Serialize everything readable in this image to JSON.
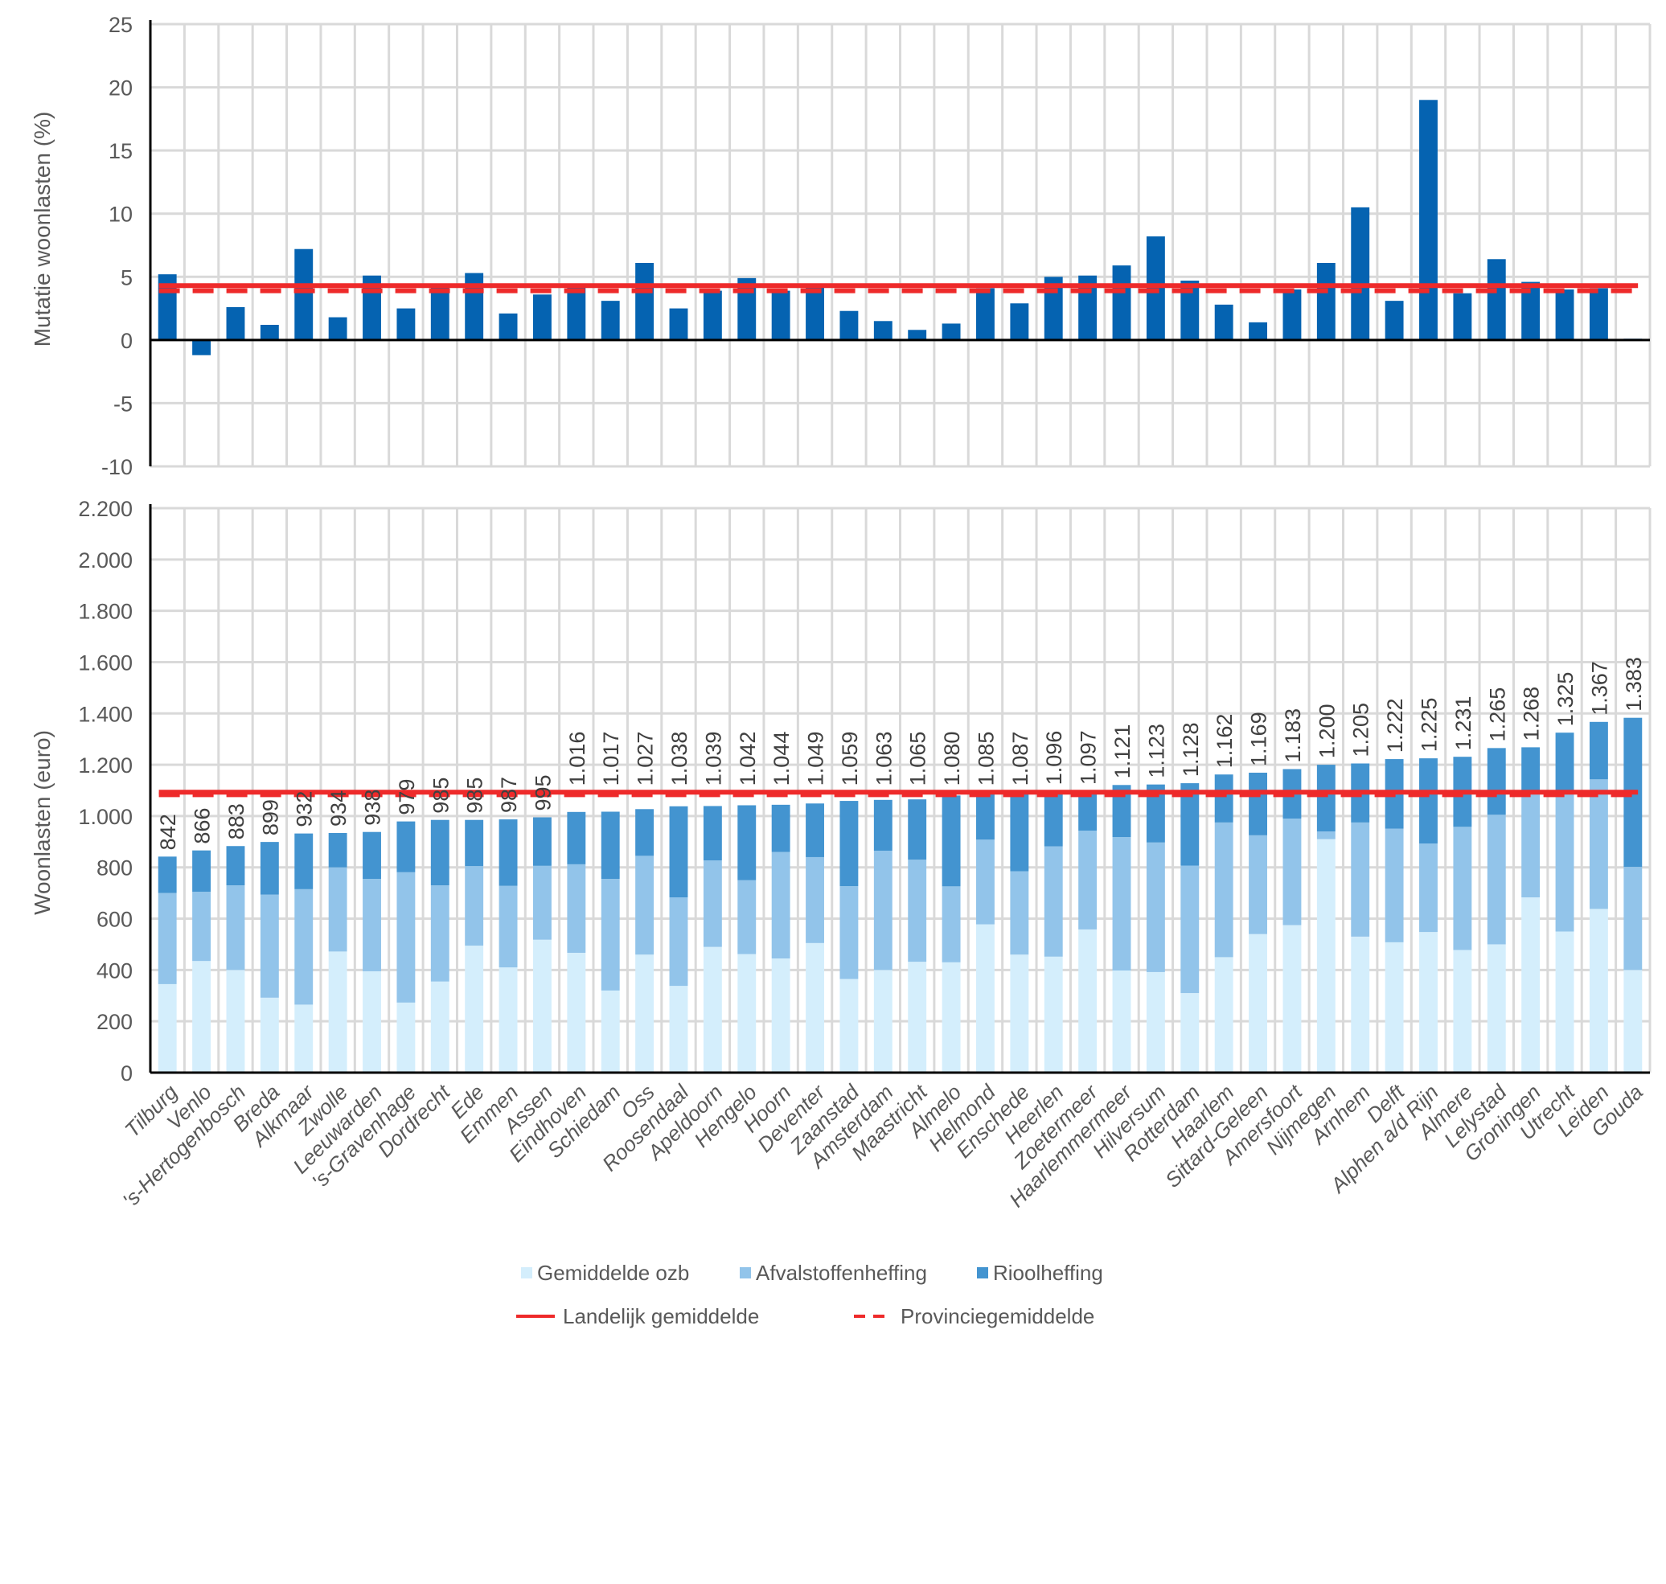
{
  "chart_data": [
    {
      "type": "bar",
      "title": "",
      "ylabel": "Mutatie woonlasten  (%)",
      "xlabel": "",
      "ylim": [
        -10,
        25
      ],
      "yticks": [
        25,
        20,
        15,
        10,
        5,
        0,
        -5,
        -10
      ],
      "grid": true,
      "categories": [
        "Tilburg",
        "Venlo",
        "'s-Hertogenbosch",
        "Breda",
        "Alkmaar",
        "Zwolle",
        "Leeuwarden",
        "'s-Gravenhage",
        "Dordrecht",
        "Ede",
        "Emmen",
        "Assen",
        "Eindhoven",
        "Schiedam",
        "Oss",
        "Roosendaal",
        "Apeldoorn",
        "Hengelo",
        "Hoorn",
        "Deventer",
        "Zaanstad",
        "Amsterdam",
        "Maastricht",
        "Almelo",
        "Helmond",
        "Enschede",
        "Heerlen",
        "Zoetermeer",
        "Haarlemmermeer",
        "Hilversum",
        "Rotterdam",
        "Haarlem",
        "Sittard-Geleen",
        "Amersfoort",
        "Nijmegen",
        "Arnhem",
        "Delft",
        "Alphen a/d Rijn",
        "Almere",
        "Lelystad",
        "Groningen",
        "Utrecht",
        "Leiden",
        "Gouda"
      ],
      "series": [
        {
          "name": "Mutatie woonlasten",
          "color": "#0563b1",
          "values": [
            5.2,
            -1.2,
            2.6,
            1.2,
            7.2,
            1.8,
            5.1,
            2.5,
            4.3,
            5.3,
            2.1,
            3.6,
            4.3,
            3.1,
            6.1,
            2.5,
            3.9,
            4.9,
            3.9,
            4.4,
            2.3,
            1.5,
            0.8,
            1.3,
            4.1,
            2.9,
            5.0,
            5.1,
            5.9,
            8.2,
            4.7,
            2.8,
            1.4,
            4.0,
            6.1,
            10.5,
            3.1,
            19.0,
            3.7,
            6.4,
            4.6,
            4.0,
            4.1,
            0.1
          ]
        }
      ],
      "reference_lines": [
        {
          "name": "Landelijk gemiddelde",
          "value": 4.3,
          "style": "solid",
          "color": "#ee2a2a"
        },
        {
          "name": "Provinciegemiddelde",
          "value": 3.9,
          "style": "dashed",
          "color": "#ee2a2a"
        }
      ]
    },
    {
      "type": "bar",
      "stacked": true,
      "title": "",
      "ylabel": "Woonlasten  (euro)",
      "xlabel": "",
      "ylim": [
        0,
        2200
      ],
      "yticks": [
        "2.200",
        "2.000",
        "1.800",
        "1.600",
        "1.400",
        "1.200",
        "1.000",
        "800",
        "600",
        "400",
        "200",
        "0"
      ],
      "grid": true,
      "categories": [
        "Tilburg",
        "Venlo",
        "'s-Hertogenbosch",
        "Breda",
        "Alkmaar",
        "Zwolle",
        "Leeuwarden",
        "'s-Gravenhage",
        "Dordrecht",
        "Ede",
        "Emmen",
        "Assen",
        "Eindhoven",
        "Schiedam",
        "Oss",
        "Roosendaal",
        "Apeldoorn",
        "Hengelo",
        "Hoorn",
        "Deventer",
        "Zaanstad",
        "Amsterdam",
        "Maastricht",
        "Almelo",
        "Helmond",
        "Enschede",
        "Heerlen",
        "Zoetermeer",
        "Haarlemmermeer",
        "Hilversum",
        "Rotterdam",
        "Haarlem",
        "Sittard-Geleen",
        "Amersfoort",
        "Nijmegen",
        "Arnhem",
        "Delft",
        "Alphen a/d Rijn",
        "Almere",
        "Lelystad",
        "Groningen",
        "Utrecht",
        "Leiden",
        "Gouda"
      ],
      "series": [
        {
          "name": "Gemiddelde ozb",
          "color": "#d4eefc",
          "values": [
            345,
            435,
            400,
            292,
            265,
            472,
            395,
            273,
            355,
            495,
            410,
            518,
            467,
            320,
            460,
            338,
            490,
            462,
            445,
            505,
            365,
            400,
            432,
            430,
            578,
            460,
            452,
            558,
            398,
            392,
            310,
            450,
            540,
            575,
            910,
            530,
            508,
            548,
            478,
            500,
            683,
            550,
            638,
            400
          ]
        },
        {
          "name": "Afvalstoffenheffing",
          "color": "#92c4ea",
          "values": [
            355,
            270,
            330,
            402,
            450,
            328,
            360,
            508,
            375,
            310,
            318,
            288,
            345,
            435,
            385,
            345,
            337,
            288,
            415,
            335,
            362,
            465,
            398,
            296,
            330,
            325,
            430,
            385,
            520,
            505,
            497,
            525,
            385,
            415,
            30,
            445,
            443,
            345,
            480,
            505,
            402,
            535,
            505,
            402
          ]
        },
        {
          "name": "Rioolheffing",
          "color": "#4394d0",
          "values": [
            142,
            161,
            153,
            205,
            217,
            134,
            183,
            198,
            255,
            180,
            259,
            189,
            204,
            262,
            182,
            355,
            212,
            292,
            184,
            209,
            332,
            198,
            235,
            354,
            177,
            302,
            214,
            154,
            203,
            226,
            321,
            187,
            244,
            193,
            260,
            230,
            271,
            332,
            273,
            260,
            183,
            240,
            224,
            581
          ]
        }
      ],
      "totals": [
        "842",
        "866",
        "883",
        "899",
        "932",
        "934",
        "938",
        "979",
        "985",
        "985",
        "987",
        "995",
        "1.016",
        "1.017",
        "1.027",
        "1.038",
        "1.039",
        "1.042",
        "1.044",
        "1.049",
        "1.059",
        "1.063",
        "1.065",
        "1.080",
        "1.085",
        "1.087",
        "1.096",
        "1.097",
        "1.121",
        "1.123",
        "1.128",
        "1.162",
        "1.169",
        "1.183",
        "1.200",
        "1.205",
        "1.222",
        "1.225",
        "1.231",
        "1.265",
        "1.268",
        "1.325",
        "1.367",
        "1.383"
      ],
      "reference_lines": [
        {
          "name": "Landelijk gemiddelde",
          "value": 1093,
          "style": "solid",
          "color": "#ee2a2a"
        },
        {
          "name": "Provinciegemiddelde",
          "value": 1083,
          "style": "dashed",
          "color": "#ee2a2a"
        }
      ],
      "legend": {
        "position": "bottom",
        "items": [
          {
            "label": "Gemiddelde ozb",
            "type": "square",
            "color": "#d4eefc"
          },
          {
            "label": "Afvalstoffenheffing",
            "type": "square",
            "color": "#92c4ea"
          },
          {
            "label": "Rioolheffing",
            "type": "square",
            "color": "#4394d0"
          },
          {
            "label": "Landelijk gemiddelde",
            "type": "line-solid",
            "color": "#ee2a2a"
          },
          {
            "label": "Provinciegemiddelde",
            "type": "line-dashed",
            "color": "#ee2a2a"
          }
        ]
      }
    }
  ]
}
